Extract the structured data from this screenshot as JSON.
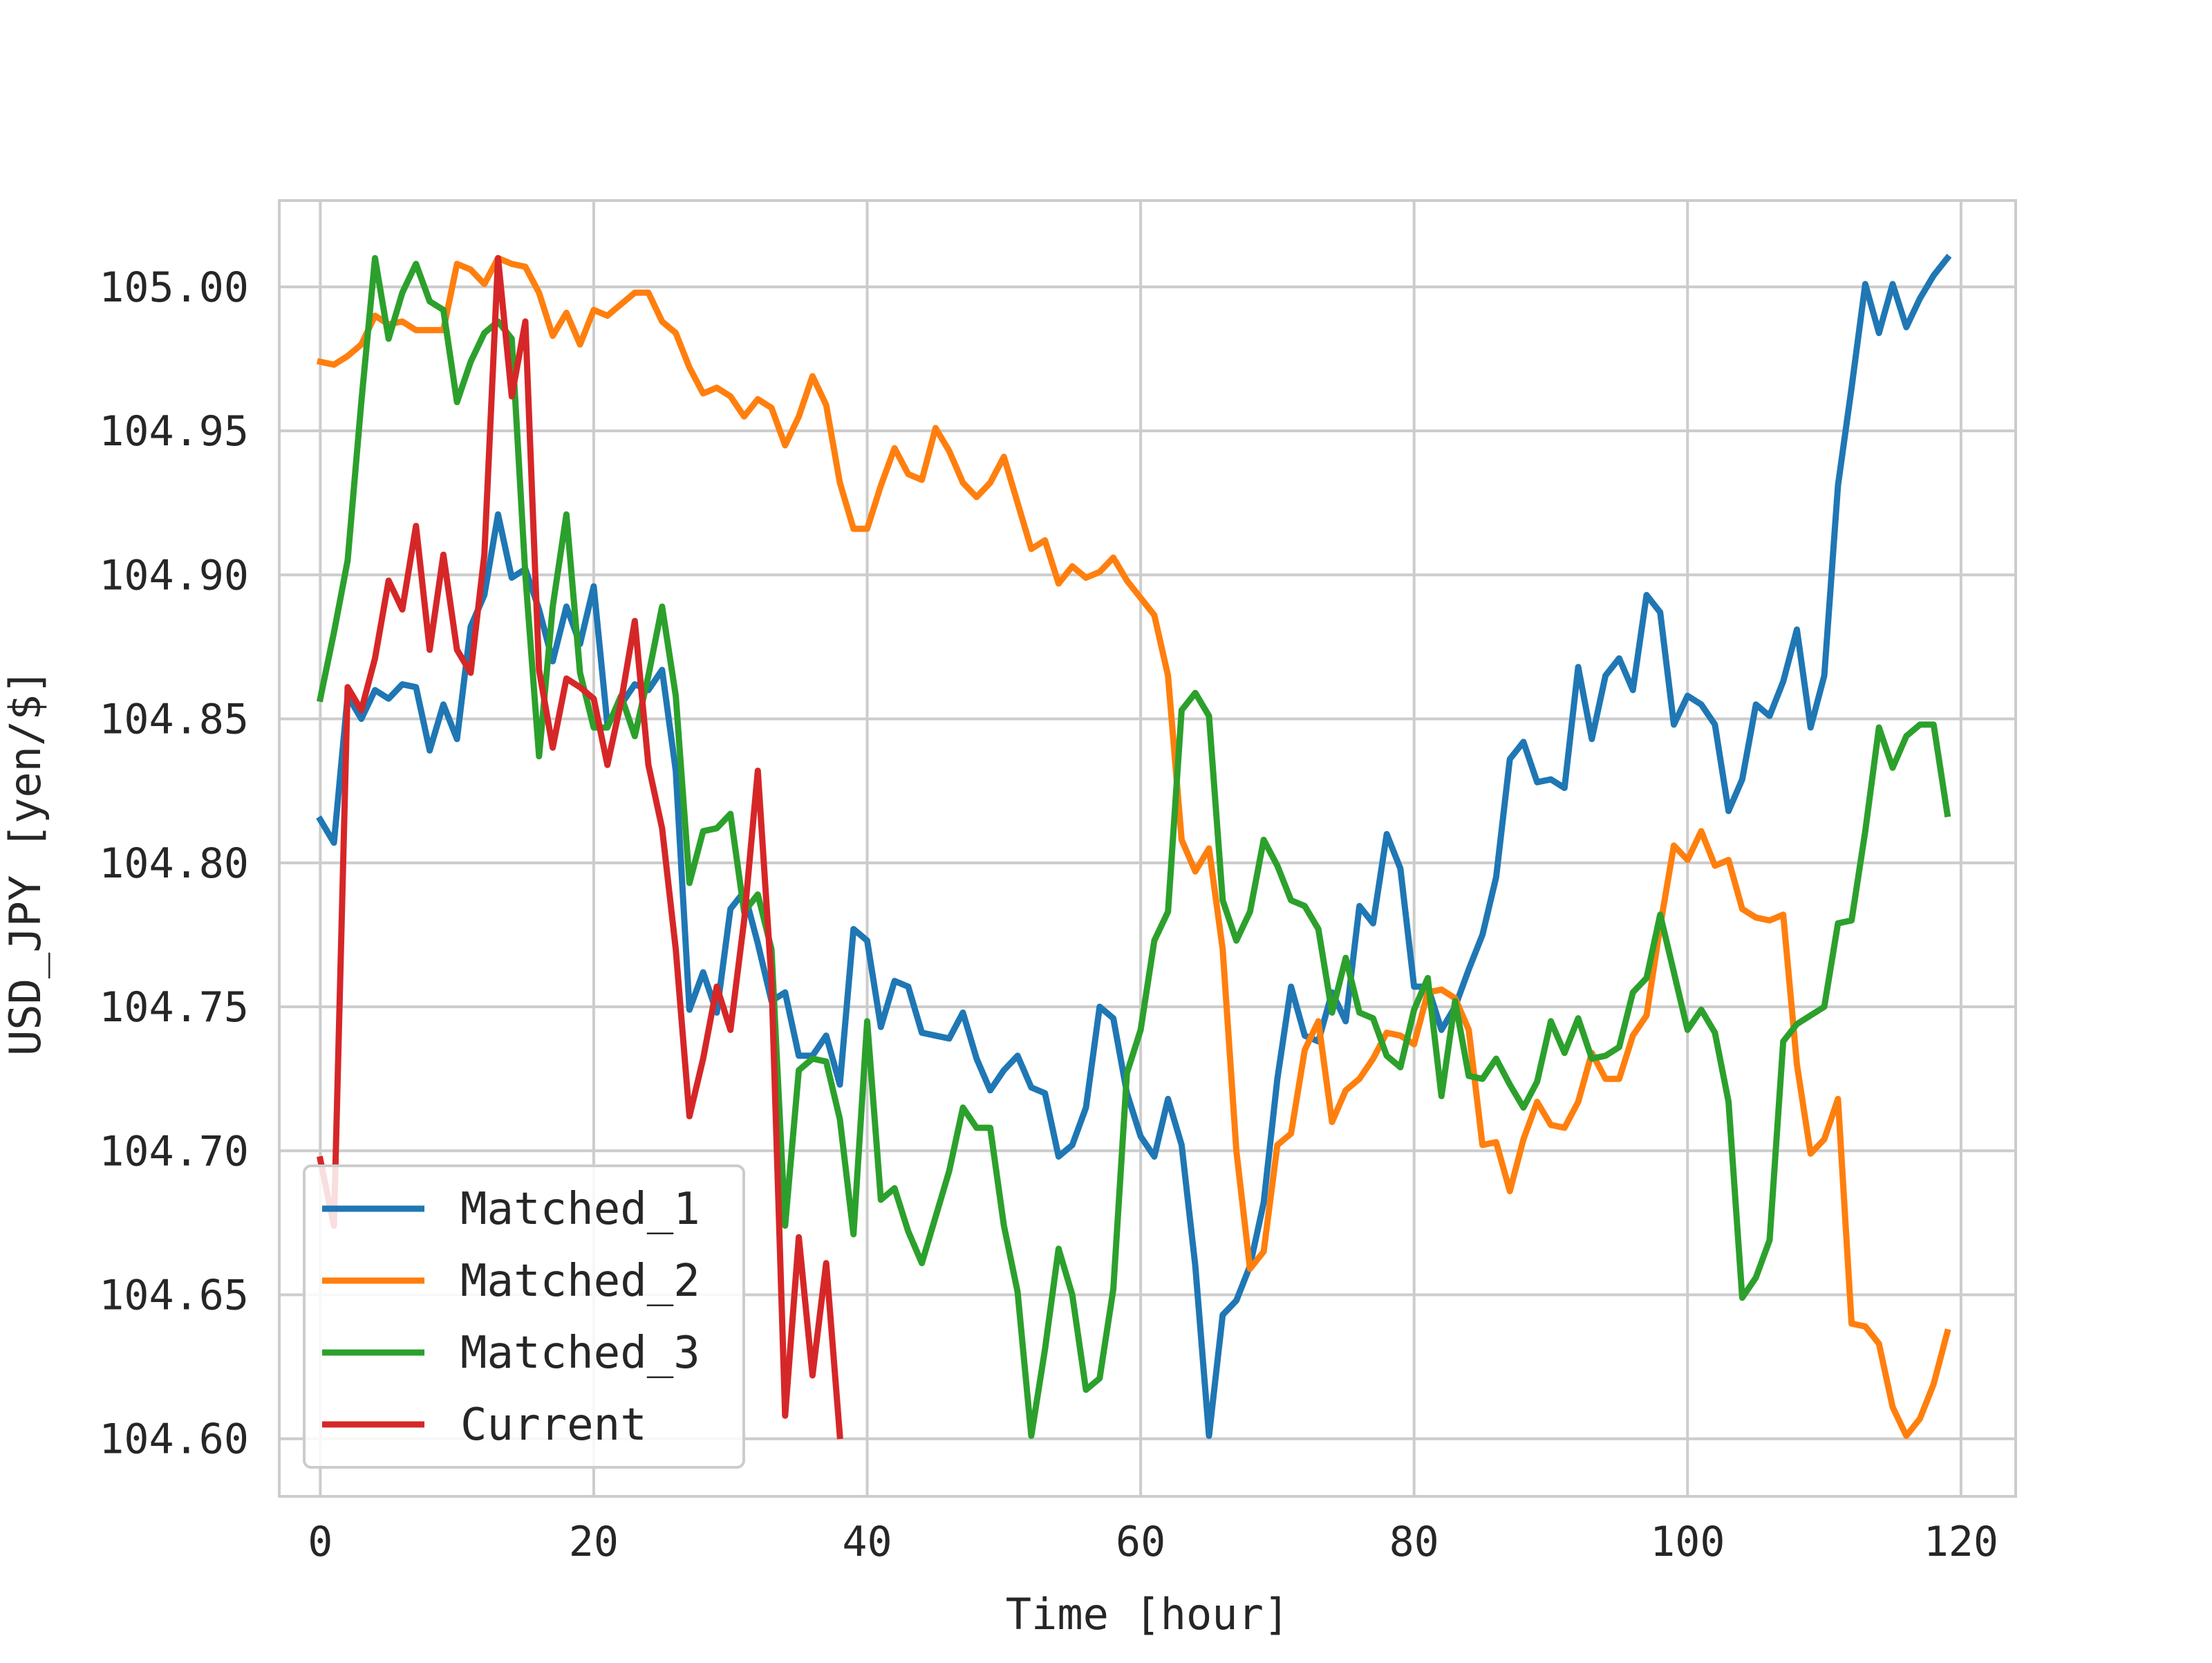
{
  "chart_data": {
    "type": "line",
    "title": "",
    "xlabel": "Time [hour]",
    "ylabel": "USD_JPY [yen/$]",
    "xlim": [
      -3,
      124
    ],
    "ylim": [
      104.58,
      105.03
    ],
    "xticks": [
      0,
      20,
      40,
      60,
      80,
      100,
      120
    ],
    "yticks": [
      104.6,
      104.65,
      104.7,
      104.75,
      104.8,
      104.85,
      104.9,
      104.95,
      105.0
    ],
    "xtick_labels": [
      "0",
      "20",
      "40",
      "60",
      "80",
      "100",
      "120"
    ],
    "ytick_labels": [
      "104.60",
      "104.65",
      "104.70",
      "104.75",
      "104.80",
      "104.85",
      "104.90",
      "104.95",
      "105.00"
    ],
    "grid": true,
    "legend_position": "lower-left",
    "series": [
      {
        "name": "Matched_1",
        "color": "#1f77b4",
        "x": [
          0,
          1,
          2,
          3,
          4,
          5,
          6,
          7,
          8,
          9,
          10,
          11,
          12,
          13,
          14,
          15,
          16,
          17,
          18,
          19,
          20,
          21,
          22,
          23,
          24,
          25,
          26,
          27,
          28,
          29,
          30,
          31,
          32,
          33,
          34,
          35,
          36,
          37,
          38,
          39,
          40,
          41,
          42,
          43,
          44,
          45,
          46,
          47,
          48,
          49,
          50,
          51,
          52,
          53,
          54,
          55,
          56,
          57,
          58,
          59,
          60,
          61,
          62,
          63,
          64,
          65,
          66,
          67,
          68,
          69,
          70,
          71,
          72,
          73,
          74,
          75,
          76,
          77,
          78,
          79,
          80,
          81,
          82,
          83,
          84,
          85,
          86,
          87,
          88,
          89,
          90,
          91,
          92,
          93,
          94,
          95,
          96,
          97,
          98,
          99,
          100,
          101,
          102,
          103,
          104,
          105,
          106,
          107,
          108,
          109,
          110,
          111,
          112,
          113,
          114,
          115,
          116,
          117,
          118,
          119
        ],
        "values": [
          104.815,
          104.807,
          104.858,
          104.85,
          104.86,
          104.857,
          104.862,
          104.861,
          104.839,
          104.855,
          104.843,
          104.882,
          104.893,
          104.921,
          104.899,
          104.902,
          104.888,
          104.87,
          104.889,
          104.876,
          104.896,
          104.848,
          104.855,
          104.862,
          104.86,
          104.867,
          104.832,
          104.749,
          104.762,
          104.748,
          104.784,
          104.79,
          104.772,
          104.752,
          104.755,
          104.733,
          104.733,
          104.74,
          104.723,
          104.777,
          104.773,
          104.743,
          104.759,
          104.757,
          104.741,
          104.74,
          104.739,
          104.748,
          104.732,
          104.721,
          104.728,
          104.733,
          104.722,
          104.72,
          104.698,
          104.702,
          104.715,
          104.75,
          104.746,
          104.72,
          104.705,
          104.698,
          104.718,
          104.702,
          104.66,
          104.601,
          104.643,
          104.648,
          104.66,
          104.682,
          104.725,
          104.757,
          104.74,
          104.738,
          104.755,
          104.745,
          104.785,
          104.779,
          104.81,
          104.798,
          104.757,
          104.757,
          104.742,
          104.75,
          104.763,
          104.775,
          104.795,
          104.836,
          104.842,
          104.828,
          104.829,
          104.826,
          104.868,
          104.843,
          104.865,
          104.871,
          104.86,
          104.893,
          104.887,
          104.848,
          104.858,
          104.855,
          104.848,
          104.818,
          104.829,
          104.855,
          104.851,
          104.863,
          104.881,
          104.847,
          104.865,
          104.931,
          104.965,
          105.001,
          104.984,
          105.001,
          104.986,
          104.996,
          105.004,
          105.01
        ]
      },
      {
        "name": "Matched_2",
        "color": "#ff7f0e",
        "x": [
          0,
          1,
          2,
          3,
          4,
          5,
          6,
          7,
          8,
          9,
          10,
          11,
          12,
          13,
          14,
          15,
          16,
          17,
          18,
          19,
          20,
          21,
          22,
          23,
          24,
          25,
          26,
          27,
          28,
          29,
          30,
          31,
          32,
          33,
          34,
          35,
          36,
          37,
          38,
          39,
          40,
          41,
          42,
          43,
          44,
          45,
          46,
          47,
          48,
          49,
          50,
          51,
          52,
          53,
          54,
          55,
          56,
          57,
          58,
          59,
          60,
          61,
          62,
          63,
          64,
          65,
          66,
          67,
          68,
          69,
          70,
          71,
          72,
          73,
          74,
          75,
          76,
          77,
          78,
          79,
          80,
          81,
          82,
          83,
          84,
          85,
          86,
          87,
          88,
          89,
          90,
          91,
          92,
          93,
          94,
          95,
          96,
          97,
          98,
          99,
          100,
          101,
          102,
          103,
          104,
          105,
          106,
          107,
          108,
          109,
          110,
          111,
          112,
          113,
          114,
          115,
          116,
          117,
          118,
          119
        ],
        "values": [
          104.974,
          104.973,
          104.976,
          104.98,
          104.99,
          104.987,
          104.988,
          104.985,
          104.985,
          104.985,
          105.008,
          105.006,
          105.001,
          105.01,
          105.008,
          105.007,
          104.998,
          104.983,
          104.991,
          104.98,
          104.992,
          104.99,
          104.994,
          104.998,
          104.998,
          104.988,
          104.984,
          104.972,
          104.963,
          104.965,
          104.962,
          104.955,
          104.961,
          104.958,
          104.945,
          104.955,
          104.969,
          104.959,
          104.932,
          104.916,
          104.916,
          104.931,
          104.944,
          104.935,
          104.933,
          104.951,
          104.943,
          104.932,
          104.927,
          104.932,
          104.941,
          104.925,
          104.909,
          104.912,
          104.897,
          104.903,
          104.899,
          104.901,
          104.906,
          104.898,
          104.892,
          104.886,
          104.865,
          104.808,
          104.797,
          104.805,
          104.77,
          104.7,
          104.659,
          104.665,
          104.702,
          104.706,
          104.735,
          104.745,
          104.71,
          104.721,
          104.725,
          104.732,
          104.741,
          104.74,
          104.737,
          104.755,
          104.756,
          104.753,
          104.742,
          104.702,
          104.703,
          104.686,
          104.704,
          104.717,
          104.709,
          104.708,
          104.717,
          104.734,
          104.725,
          104.725,
          104.74,
          104.747,
          104.778,
          104.806,
          104.801,
          104.811,
          104.799,
          104.801,
          104.784,
          104.781,
          104.78,
          104.782,
          104.73,
          104.699,
          104.704,
          104.718,
          104.64,
          104.639,
          104.633,
          104.611,
          104.601,
          104.607,
          104.619,
          104.637
        ]
      },
      {
        "name": "Matched_3",
        "color": "#2ca02c",
        "x": [
          0,
          1,
          2,
          3,
          4,
          5,
          6,
          7,
          8,
          9,
          10,
          11,
          12,
          13,
          14,
          15,
          16,
          17,
          18,
          19,
          20,
          21,
          22,
          23,
          24,
          25,
          26,
          27,
          28,
          29,
          30,
          31,
          32,
          33,
          34,
          35,
          36,
          37,
          38,
          39,
          40,
          41,
          42,
          43,
          44,
          45,
          46,
          47,
          48,
          49,
          50,
          51,
          52,
          53,
          54,
          55,
          56,
          57,
          58,
          59,
          60,
          61,
          62,
          63,
          64,
          65,
          66,
          67,
          68,
          69,
          70,
          71,
          72,
          73,
          74,
          75,
          76,
          77,
          78,
          79,
          80,
          81,
          82,
          83,
          84,
          85,
          86,
          87,
          88,
          89,
          90,
          91,
          92,
          93,
          94,
          95,
          96,
          97,
          98,
          99,
          100,
          101,
          102,
          103,
          104,
          105,
          106,
          107,
          108,
          109,
          110,
          111,
          112,
          113,
          114,
          115,
          116,
          117,
          118,
          119
        ],
        "values": [
          104.857,
          104.88,
          104.905,
          104.96,
          105.01,
          104.982,
          104.998,
          105.008,
          104.995,
          104.992,
          104.96,
          104.974,
          104.984,
          104.988,
          104.982,
          104.9,
          104.837,
          104.889,
          104.921,
          104.866,
          104.847,
          104.847,
          104.858,
          104.844,
          104.865,
          104.889,
          104.858,
          104.793,
          104.811,
          104.812,
          104.817,
          104.783,
          104.789,
          104.77,
          104.674,
          104.728,
          104.732,
          104.731,
          104.711,
          104.671,
          104.745,
          104.683,
          104.687,
          104.672,
          104.661,
          104.677,
          104.693,
          104.715,
          104.708,
          104.708,
          104.674,
          104.651,
          104.601,
          104.631,
          104.666,
          104.65,
          104.617,
          104.621,
          104.652,
          104.727,
          104.742,
          104.773,
          104.783,
          104.853,
          104.859,
          104.851,
          104.787,
          104.773,
          104.783,
          104.808,
          104.799,
          104.787,
          104.785,
          104.777,
          104.748,
          104.767,
          104.748,
          104.746,
          104.733,
          104.729,
          104.749,
          104.76,
          104.719,
          104.752,
          104.726,
          104.725,
          104.732,
          104.723,
          104.715,
          104.724,
          104.745,
          104.734,
          104.746,
          104.732,
          104.733,
          104.736,
          104.755,
          104.76,
          104.782,
          104.762,
          104.742,
          104.749,
          104.741,
          104.717,
          104.649,
          104.656,
          104.669,
          104.738,
          104.744,
          104.747,
          104.75,
          104.779,
          104.78,
          104.811,
          104.847,
          104.833,
          104.844,
          104.848,
          104.848,
          104.817
        ]
      },
      {
        "name": "Current",
        "color": "#d62728",
        "x": [
          0,
          1,
          2,
          3,
          4,
          5,
          6,
          7,
          8,
          9,
          10,
          11,
          12,
          13,
          14,
          15,
          16,
          17,
          18,
          19,
          20,
          21,
          22,
          23,
          24,
          25,
          26,
          27,
          28,
          29,
          30,
          31,
          32,
          33,
          34,
          35,
          36,
          37,
          38
        ],
        "values": [
          104.697,
          104.674,
          104.861,
          104.853,
          104.871,
          104.898,
          104.888,
          104.917,
          104.874,
          104.907,
          104.874,
          104.866,
          104.907,
          105.01,
          104.962,
          104.988,
          104.867,
          104.84,
          104.864,
          104.861,
          104.857,
          104.834,
          104.856,
          104.884,
          104.834,
          104.812,
          104.77,
          104.712,
          104.732,
          104.757,
          104.742,
          104.78,
          104.832,
          104.759,
          104.608,
          104.67,
          104.622,
          104.661,
          104.601
        ]
      }
    ]
  }
}
